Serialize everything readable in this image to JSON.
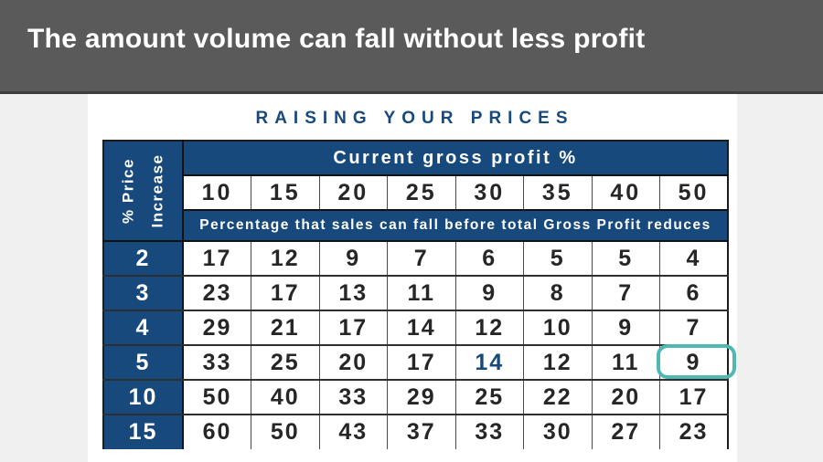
{
  "colors": {
    "navy": "#17497c",
    "teal": "#4fb8b3",
    "banner_gray": "#5a5a5a",
    "side_gray": "#f0f0f0",
    "text_dark": "#262626"
  },
  "banner": {
    "title": "The amount volume can fall without less profit"
  },
  "chart_data": {
    "type": "table",
    "title": "RAISING YOUR PRICES",
    "corner_header_lines": [
      "% Price",
      "Increase"
    ],
    "corner_header": "% Price Increase",
    "column_group_label": "Current gross profit %",
    "note": "Percentage that sales can fall before total Gross Profit reduces",
    "columns": [
      "10",
      "15",
      "20",
      "25",
      "30",
      "35",
      "40",
      "50"
    ],
    "rows": [
      {
        "label": "2",
        "values": [
          "17",
          "12",
          "9",
          "7",
          "6",
          "5",
          "5",
          "4"
        ]
      },
      {
        "label": "3",
        "values": [
          "23",
          "17",
          "13",
          "11",
          "9",
          "8",
          "7",
          "6"
        ]
      },
      {
        "label": "4",
        "values": [
          "29",
          "21",
          "17",
          "14",
          "12",
          "10",
          "9",
          "7"
        ]
      },
      {
        "label": "5",
        "values": [
          "33",
          "25",
          "20",
          "17",
          "14",
          "12",
          "11",
          "9"
        ]
      },
      {
        "label": "10",
        "values": [
          "50",
          "40",
          "33",
          "29",
          "25",
          "22",
          "20",
          "17"
        ]
      },
      {
        "label": "15",
        "values": [
          "60",
          "50",
          "43",
          "37",
          "33",
          "30",
          "27",
          "23"
        ]
      }
    ],
    "highlights": {
      "accent_value": {
        "row_label": "5",
        "column": "30",
        "value": "14",
        "row_index": 3,
        "col_index": 4,
        "color": "#17497c"
      },
      "circled_value": {
        "row_label": "5",
        "column": "50",
        "value": "9",
        "row_index": 3,
        "col_index": 7,
        "box_color": "#4fb8b3"
      }
    }
  }
}
